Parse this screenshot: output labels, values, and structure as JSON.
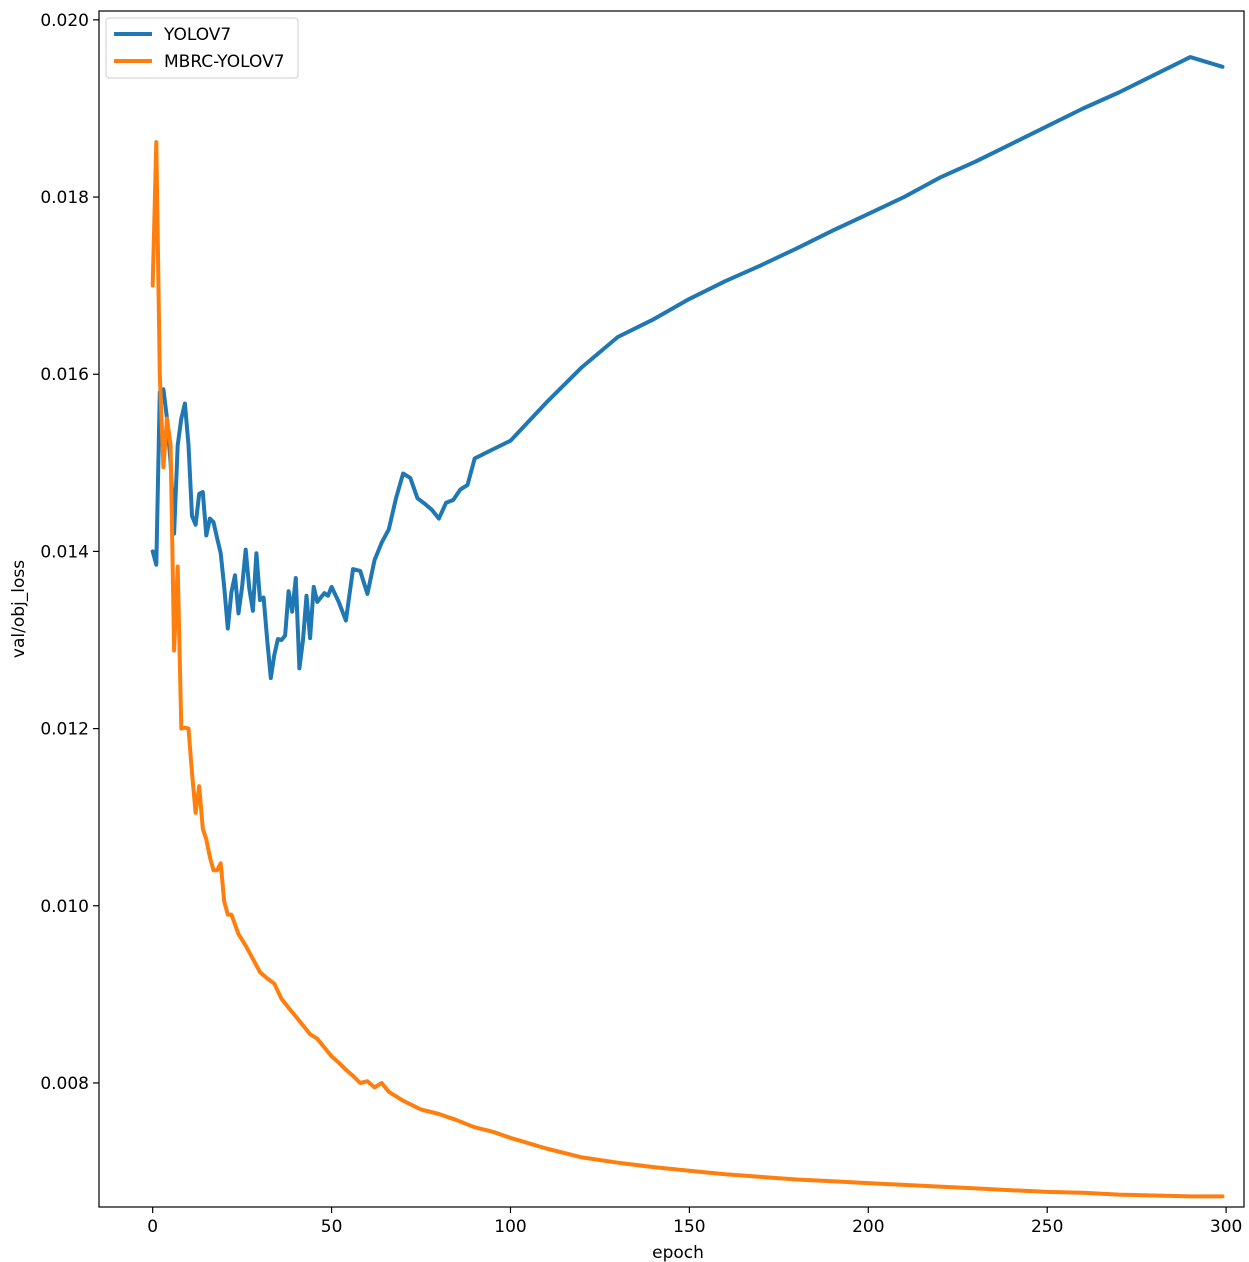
{
  "chart_data": {
    "type": "line",
    "xlabel": "epoch",
    "ylabel": "val/obj_loss",
    "xlim": [
      -15,
      305
    ],
    "ylim": [
      0.0066,
      0.0201
    ],
    "xticks": [
      0,
      50,
      100,
      150,
      200,
      250,
      300
    ],
    "yticks": [
      0.008,
      0.01,
      0.012,
      0.014,
      0.016,
      0.018,
      0.02
    ],
    "ytick_labels": [
      "0.008",
      "0.010",
      "0.012",
      "0.014",
      "0.016",
      "0.018",
      "0.020"
    ],
    "grid": false,
    "legend_position": "top-left",
    "series": [
      {
        "name": "YOLOV7",
        "color": "#1f77b4",
        "x": [
          0,
          1,
          2,
          3,
          4,
          5,
          6,
          7,
          8,
          9,
          10,
          11,
          12,
          13,
          14,
          15,
          16,
          17,
          18,
          19,
          20,
          21,
          22,
          23,
          24,
          25,
          26,
          27,
          28,
          29,
          30,
          31,
          32,
          33,
          34,
          35,
          36,
          37,
          38,
          39,
          40,
          41,
          42,
          43,
          44,
          45,
          46,
          47,
          48,
          49,
          50,
          52,
          54,
          56,
          58,
          60,
          62,
          64,
          66,
          68,
          70,
          72,
          74,
          76,
          78,
          80,
          82,
          84,
          86,
          88,
          90,
          95,
          100,
          110,
          120,
          130,
          140,
          150,
          160,
          170,
          180,
          190,
          200,
          210,
          220,
          230,
          240,
          250,
          260,
          270,
          280,
          290,
          299
        ],
        "y": [
          0.014,
          0.01385,
          0.0158,
          0.01583,
          0.0155,
          0.015,
          0.0142,
          0.0152,
          0.0155,
          0.01567,
          0.0152,
          0.0144,
          0.0143,
          0.01465,
          0.01467,
          0.01418,
          0.01437,
          0.01433,
          0.01415,
          0.01398,
          0.0136,
          0.01313,
          0.01354,
          0.01373,
          0.0133,
          0.0136,
          0.01402,
          0.01358,
          0.01333,
          0.01398,
          0.01345,
          0.01348,
          0.013,
          0.01257,
          0.01283,
          0.01301,
          0.013,
          0.01305,
          0.01355,
          0.01332,
          0.0137,
          0.01268,
          0.013,
          0.0135,
          0.01302,
          0.0136,
          0.01343,
          0.01348,
          0.01353,
          0.0135,
          0.0136,
          0.01343,
          0.01322,
          0.0138,
          0.01378,
          0.01352,
          0.0139,
          0.0141,
          0.01425,
          0.0146,
          0.01488,
          0.01483,
          0.0146,
          0.01454,
          0.01447,
          0.01437,
          0.01455,
          0.01458,
          0.0147,
          0.01475,
          0.01505,
          0.01515,
          0.01525,
          0.01568,
          0.01608,
          0.01642,
          0.01662,
          0.01685,
          0.01705,
          0.01723,
          0.01742,
          0.01762,
          0.01781,
          0.018,
          0.01822,
          0.0184,
          0.0186,
          0.0188,
          0.019,
          0.01918,
          0.01938,
          0.01958,
          0.01947
        ]
      },
      {
        "name": "MBRC-YOLOV7",
        "color": "#ff7f0e",
        "x": [
          0,
          1,
          2,
          3,
          4,
          5,
          6,
          7,
          8,
          9,
          10,
          11,
          12,
          13,
          14,
          15,
          16,
          17,
          18,
          19,
          20,
          21,
          22,
          24,
          26,
          28,
          30,
          32,
          34,
          36,
          38,
          40,
          42,
          44,
          46,
          48,
          50,
          52,
          54,
          56,
          58,
          60,
          62,
          64,
          66,
          68,
          70,
          75,
          80,
          85,
          90,
          95,
          100,
          110,
          120,
          130,
          140,
          150,
          160,
          170,
          180,
          190,
          200,
          210,
          220,
          230,
          240,
          250,
          260,
          270,
          280,
          290,
          299
        ],
        "y": [
          0.017,
          0.01862,
          0.016,
          0.01495,
          0.0155,
          0.0152,
          0.01288,
          0.01383,
          0.012,
          0.01201,
          0.012,
          0.0115,
          0.01105,
          0.01135,
          0.01087,
          0.01075,
          0.01055,
          0.0104,
          0.0104,
          0.01048,
          0.01005,
          0.0099,
          0.0099,
          0.00968,
          0.00955,
          0.0094,
          0.00925,
          0.00918,
          0.00912,
          0.00895,
          0.00885,
          0.00875,
          0.00865,
          0.00855,
          0.0085,
          0.0084,
          0.0083,
          0.00823,
          0.00815,
          0.00808,
          0.008,
          0.00802,
          0.00795,
          0.008,
          0.0079,
          0.00785,
          0.0078,
          0.0077,
          0.00765,
          0.00758,
          0.0075,
          0.00745,
          0.00738,
          0.00726,
          0.00716,
          0.0071,
          0.00705,
          0.00701,
          0.00697,
          0.00694,
          0.00691,
          0.00689,
          0.00687,
          0.00685,
          0.00683,
          0.00681,
          0.00679,
          0.00677,
          0.00676,
          0.00674,
          0.00673,
          0.00672,
          0.00672
        ]
      }
    ]
  }
}
